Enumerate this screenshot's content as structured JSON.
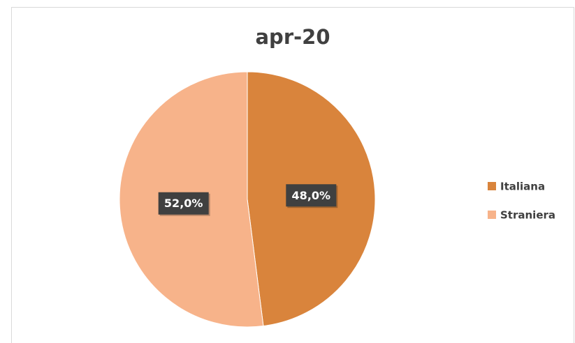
{
  "chart_data": {
    "type": "pie",
    "title": "apr-20",
    "categories": [
      "Italiana",
      "Straniera"
    ],
    "values": [
      48.0,
      52.0
    ],
    "value_labels": [
      "48,0%",
      "52,0%"
    ],
    "colors": [
      "#d9843c",
      "#f7b38a"
    ],
    "legend": "right"
  }
}
